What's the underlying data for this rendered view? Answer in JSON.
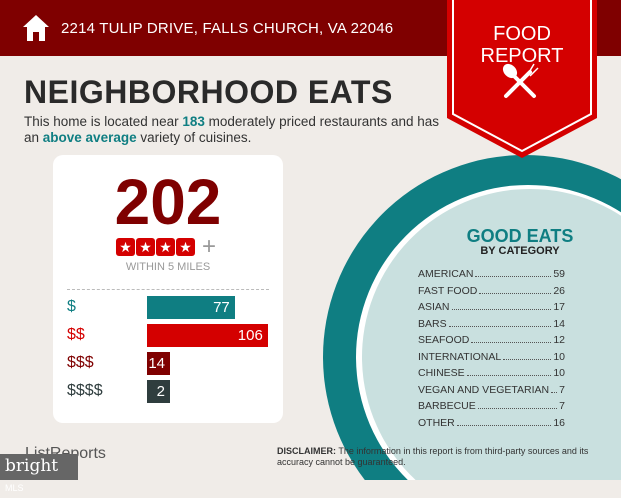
{
  "header": {
    "address": "2214 TULIP DRIVE, FALLS CHURCH, VA 22046",
    "badge_line1": "FOOD",
    "badge_line2": "REPORT"
  },
  "title": "NEIGHBORHOOD EATS",
  "summary": {
    "pre": "This home is located near ",
    "count": "183",
    "mid": " moderately priced restaurants and has an ",
    "variety": "above average",
    "post": " variety of cuisines."
  },
  "card": {
    "total": "202",
    "stars": 4,
    "plus": "+",
    "within": "WITHIN 5 MILES",
    "price_levels": [
      {
        "label": "$",
        "value": 77,
        "color": "#0f7e82"
      },
      {
        "label": "$$",
        "value": 106,
        "color": "#d40000"
      },
      {
        "label": "$$$",
        "value": 14,
        "color": "#7f0000"
      },
      {
        "label": "$$$$",
        "value": 2,
        "color": "#2f3d3e"
      }
    ]
  },
  "good_eats": {
    "title": "GOOD EATS",
    "subtitle": "BY CATEGORY",
    "categories": [
      {
        "name": "AMERICAN",
        "count": "59"
      },
      {
        "name": "FAST FOOD",
        "count": "26"
      },
      {
        "name": "ASIAN",
        "count": "17"
      },
      {
        "name": "BARS",
        "count": "14"
      },
      {
        "name": "SEAFOOD",
        "count": "12"
      },
      {
        "name": "INTERNATIONAL",
        "count": "10"
      },
      {
        "name": "CHINESE",
        "count": "10"
      },
      {
        "name": "VEGAN AND VEGETARIAN",
        "count": "7"
      },
      {
        "name": "BARBECUE",
        "count": "7"
      },
      {
        "name": "OTHER",
        "count": "16"
      }
    ]
  },
  "disclaimer": {
    "label": "DISCLAIMER:",
    "text": " The information in this report is from third-party sources and its accuracy cannot be guaranteed."
  },
  "footer": {
    "brand": "ListReports",
    "watermark": "bright",
    "watermark_sub": "MLS"
  },
  "colors": {
    "header": "#7f0000",
    "accent": "#d40000",
    "teal": "#0f7e82",
    "background": "#f0ece8"
  }
}
